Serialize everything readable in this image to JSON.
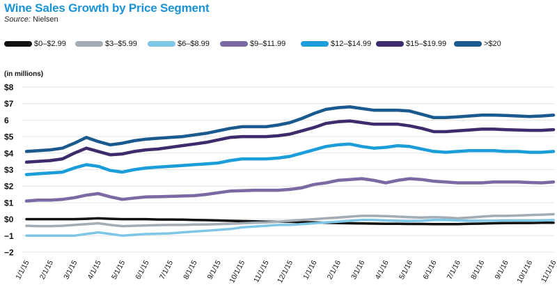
{
  "chart_data": {
    "type": "line",
    "title": "Wine Sales Growth by Price Segment",
    "source_label": "Source:",
    "source_name": "Nielsen",
    "ylabel": "(in millions)",
    "xlabel": "",
    "ylim": [
      -2,
      8
    ],
    "yticks": [
      8,
      7,
      6,
      5,
      4,
      3,
      2,
      1,
      0,
      -1,
      -2
    ],
    "ytick_labels": [
      "$8",
      "$7",
      "6",
      "$5",
      "$4",
      "$3",
      "$2",
      "$1",
      "$0",
      "−1",
      "−2"
    ],
    "grid": true,
    "categories": [
      "1/1/15",
      "",
      "2/1/15",
      "",
      "3/1/15",
      "",
      "4/1/15",
      "",
      "5/1/15",
      "",
      "6/1/15",
      "",
      "7/1/15",
      "",
      "8/1/15",
      "",
      "9/1/15",
      "",
      "10/1/15",
      "",
      "11/1/15",
      "",
      "12/1/15",
      "",
      "1/1/16",
      "",
      "2/1/16",
      "",
      "3/1/16",
      "",
      "4/1/16",
      "",
      "5/1/16",
      "",
      "6/1/16",
      "",
      "7/1/16",
      "",
      "8/1/16",
      "",
      "9/1/16",
      "",
      "10/1/16",
      "",
      "11/1/16"
    ],
    "series": [
      {
        "name": "$0–$2.99",
        "color": "#111111",
        "values": [
          0.0,
          0.0,
          0.0,
          0.0,
          0.0,
          0.02,
          0.05,
          0.02,
          0.0,
          0.0,
          0.0,
          -0.02,
          -0.02,
          -0.03,
          -0.05,
          -0.06,
          -0.08,
          -0.1,
          -0.12,
          -0.13,
          -0.15,
          -0.15,
          -0.16,
          -0.18,
          -0.2,
          -0.22,
          -0.24,
          -0.25,
          -0.26,
          -0.27,
          -0.28,
          -0.28,
          -0.29,
          -0.29,
          -0.3,
          -0.3,
          -0.3,
          -0.28,
          -0.27,
          -0.25,
          -0.24,
          -0.23,
          -0.23,
          -0.22,
          -0.22
        ]
      },
      {
        "name": "$3–$5.99",
        "color": "#a3acb4",
        "values": [
          -0.4,
          -0.42,
          -0.42,
          -0.4,
          -0.35,
          -0.3,
          -0.25,
          -0.35,
          -0.42,
          -0.4,
          -0.38,
          -0.36,
          -0.35,
          -0.35,
          -0.33,
          -0.32,
          -0.3,
          -0.28,
          -0.25,
          -0.22,
          -0.2,
          -0.15,
          -0.1,
          -0.05,
          0.0,
          0.05,
          0.1,
          0.15,
          0.2,
          0.2,
          0.18,
          0.15,
          0.12,
          0.1,
          0.12,
          0.1,
          0.05,
          0.1,
          0.15,
          0.2,
          0.2,
          0.22,
          0.25,
          0.27,
          0.3
        ]
      },
      {
        "name": "$6–$8.99",
        "color": "#7ec6e6",
        "values": [
          -1.0,
          -1.0,
          -1.0,
          -1.0,
          -1.0,
          -0.9,
          -0.8,
          -0.9,
          -1.0,
          -0.95,
          -0.9,
          -0.88,
          -0.86,
          -0.8,
          -0.75,
          -0.7,
          -0.65,
          -0.6,
          -0.5,
          -0.45,
          -0.4,
          -0.35,
          -0.35,
          -0.3,
          -0.25,
          -0.2,
          -0.15,
          -0.1,
          -0.05,
          -0.05,
          -0.08,
          -0.1,
          -0.12,
          -0.1,
          -0.05,
          -0.05,
          -0.08,
          -0.1,
          -0.1,
          -0.1,
          -0.08,
          -0.08,
          -0.08,
          -0.08,
          -0.06
        ]
      },
      {
        "name": "$9–$11.99",
        "color": "#7a69a3",
        "values": [
          1.1,
          1.15,
          1.15,
          1.2,
          1.3,
          1.45,
          1.55,
          1.35,
          1.2,
          1.28,
          1.35,
          1.36,
          1.38,
          1.4,
          1.42,
          1.5,
          1.6,
          1.7,
          1.72,
          1.75,
          1.75,
          1.75,
          1.8,
          1.9,
          2.1,
          2.2,
          2.35,
          2.4,
          2.45,
          2.35,
          2.2,
          2.35,
          2.45,
          2.4,
          2.3,
          2.25,
          2.2,
          2.2,
          2.2,
          2.25,
          2.25,
          2.25,
          2.22,
          2.2,
          2.25
        ]
      },
      {
        "name": "$12–$14.99",
        "color": "#1a9dd9",
        "values": [
          2.7,
          2.75,
          2.8,
          2.85,
          3.1,
          3.3,
          3.2,
          2.95,
          2.85,
          3.0,
          3.1,
          3.15,
          3.2,
          3.25,
          3.3,
          3.35,
          3.4,
          3.55,
          3.65,
          3.65,
          3.65,
          3.7,
          3.8,
          4.0,
          4.2,
          4.4,
          4.5,
          4.55,
          4.4,
          4.3,
          4.35,
          4.45,
          4.4,
          4.25,
          4.1,
          4.05,
          4.1,
          4.15,
          4.15,
          4.15,
          4.1,
          4.1,
          4.05,
          4.05,
          4.1
        ]
      },
      {
        "name": "$15–$19.99",
        "color": "#3d2b6b",
        "values": [
          3.45,
          3.5,
          3.55,
          3.65,
          4.0,
          4.3,
          4.1,
          3.9,
          3.95,
          4.1,
          4.2,
          4.25,
          4.35,
          4.45,
          4.55,
          4.65,
          4.8,
          4.95,
          5.0,
          5.0,
          5.0,
          5.05,
          5.15,
          5.35,
          5.55,
          5.8,
          5.9,
          5.95,
          5.85,
          5.75,
          5.75,
          5.75,
          5.65,
          5.5,
          5.3,
          5.3,
          5.35,
          5.4,
          5.45,
          5.45,
          5.42,
          5.4,
          5.38,
          5.38,
          5.42
        ]
      },
      {
        "name": ">$20",
        "color": "#1a5a8e",
        "values": [
          4.1,
          4.15,
          4.2,
          4.3,
          4.6,
          4.95,
          4.7,
          4.5,
          4.6,
          4.75,
          4.85,
          4.9,
          4.95,
          5.0,
          5.1,
          5.2,
          5.35,
          5.5,
          5.6,
          5.6,
          5.6,
          5.7,
          5.85,
          6.1,
          6.4,
          6.65,
          6.75,
          6.8,
          6.7,
          6.6,
          6.6,
          6.6,
          6.55,
          6.35,
          6.15,
          6.15,
          6.2,
          6.25,
          6.3,
          6.3,
          6.28,
          6.25,
          6.22,
          6.25,
          6.3
        ]
      }
    ]
  }
}
